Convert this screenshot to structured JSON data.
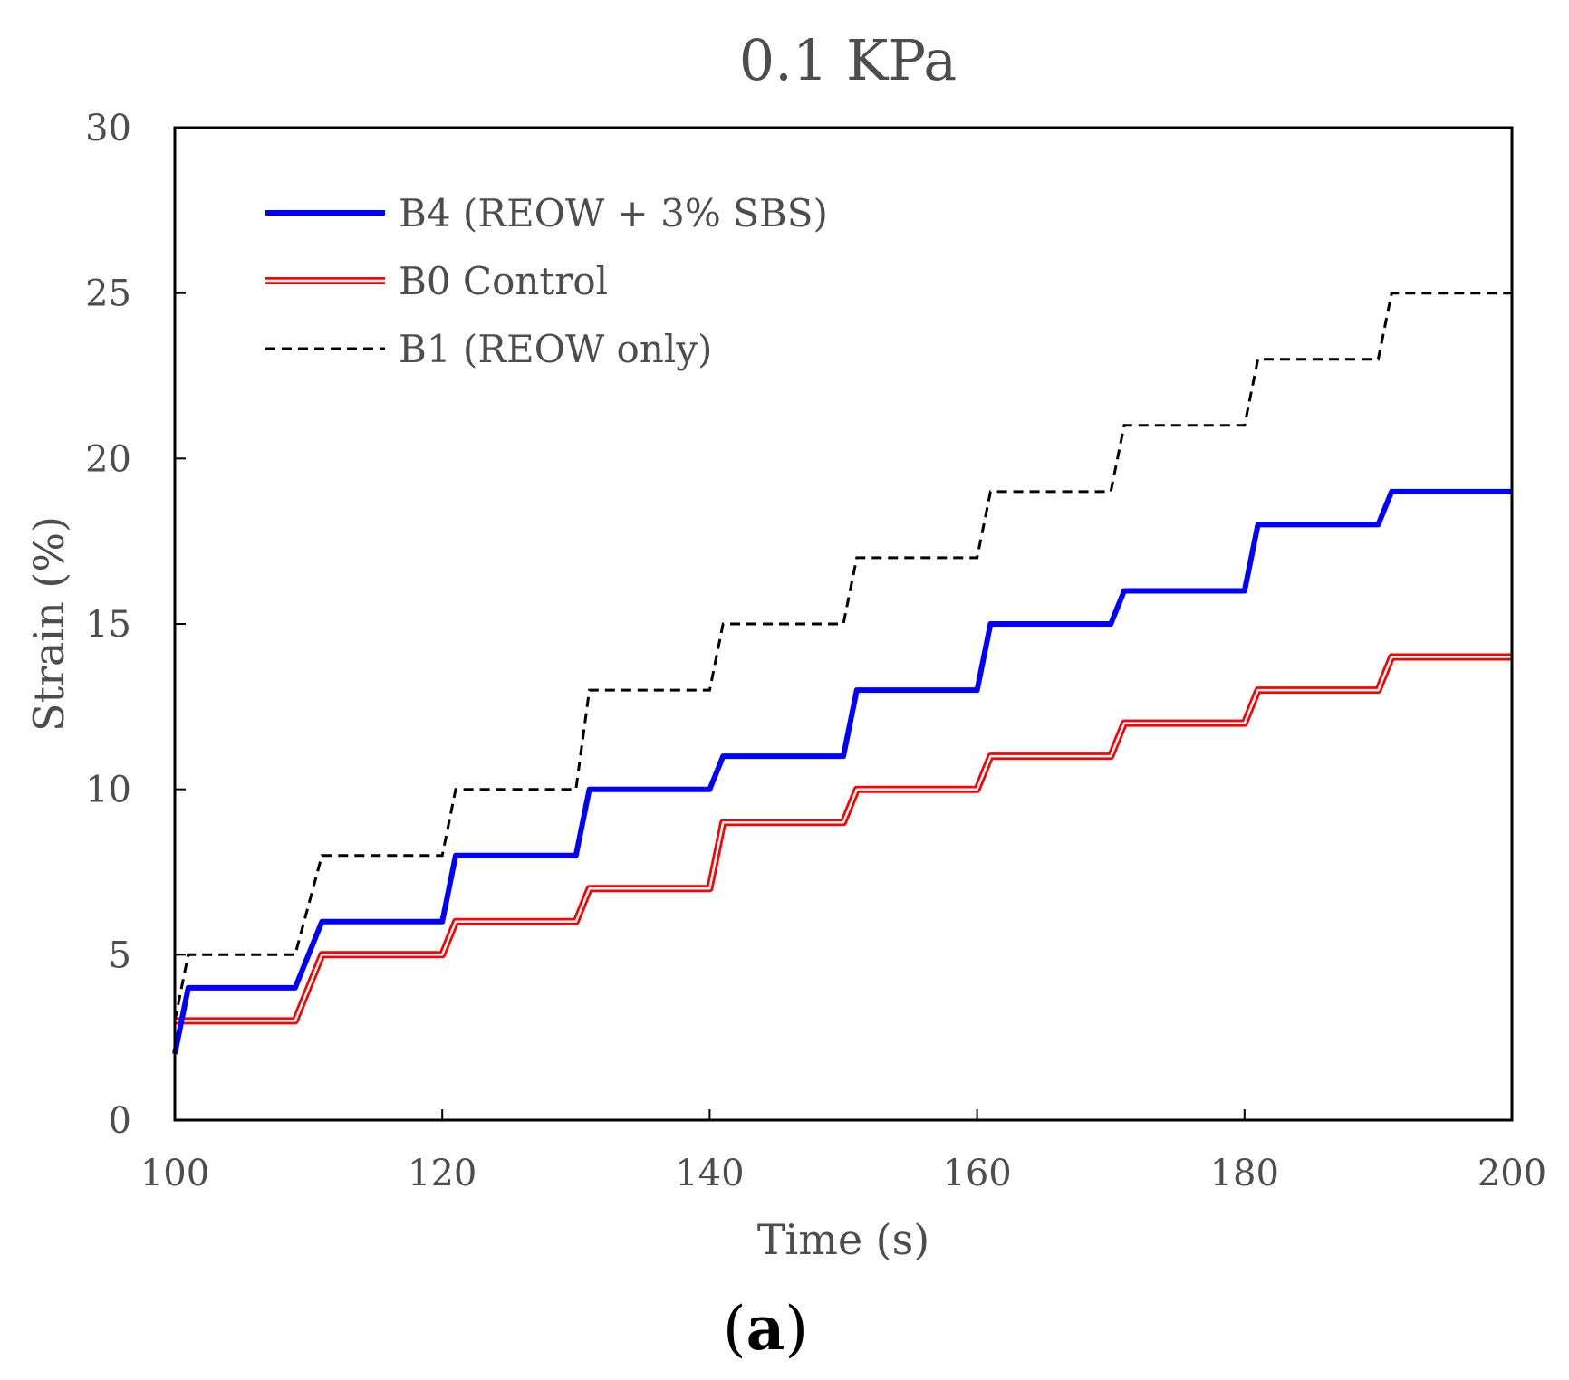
{
  "chart_data": {
    "type": "line",
    "title": "0.1 KPa",
    "xlabel": "Time (s)",
    "ylabel": "Strain (%)",
    "xlim": [
      100,
      200
    ],
    "ylim": [
      0,
      30
    ],
    "xticks": [
      100,
      120,
      140,
      160,
      180,
      200
    ],
    "yticks": [
      0,
      5,
      10,
      15,
      20,
      25,
      30
    ],
    "xtick_labels": [
      "100",
      "120",
      "140",
      "160",
      "180",
      "200"
    ],
    "ytick_labels": [
      "0",
      "5",
      "10",
      "15",
      "20",
      "25",
      "30"
    ],
    "grid": false,
    "legend_position": "top-left",
    "caption": {
      "open": "(",
      "letter": "a",
      "close": ")"
    },
    "series": [
      {
        "name": "B4 (REOW + 3% SBS)",
        "style": "solid",
        "color": "#0000ff",
        "x": [
          100,
          101,
          109,
          111,
          120,
          121,
          130,
          131,
          140,
          141,
          150,
          151,
          160,
          161,
          170,
          171,
          180,
          181,
          190,
          191,
          200
        ],
        "y": [
          2,
          4,
          4,
          6,
          6,
          8,
          8,
          10,
          10,
          11,
          11,
          13,
          13,
          15,
          15,
          16,
          16,
          18,
          18,
          19,
          19
        ]
      },
      {
        "name": "B0 Control",
        "style": "double",
        "color": "#ff0000",
        "x": [
          100,
          109,
          111,
          120,
          121,
          130,
          131,
          140,
          141,
          150,
          151,
          160,
          161,
          170,
          171,
          180,
          181,
          190,
          191,
          200
        ],
        "y": [
          3,
          3,
          5,
          5,
          6,
          6,
          7,
          7,
          9,
          9,
          10,
          10,
          11,
          11,
          12,
          12,
          13,
          13,
          14,
          14
        ]
      },
      {
        "name": "B1 (REOW only)",
        "style": "dashed",
        "color": "#000000",
        "x": [
          100,
          101,
          109,
          111,
          120,
          121,
          130,
          131,
          140,
          141,
          150,
          151,
          160,
          161,
          170,
          171,
          180,
          181,
          190,
          191,
          200
        ],
        "y": [
          3,
          5,
          5,
          8,
          8,
          10,
          10,
          13,
          13,
          15,
          15,
          17,
          17,
          19,
          19,
          21,
          21,
          23,
          23,
          25,
          25
        ]
      }
    ]
  }
}
